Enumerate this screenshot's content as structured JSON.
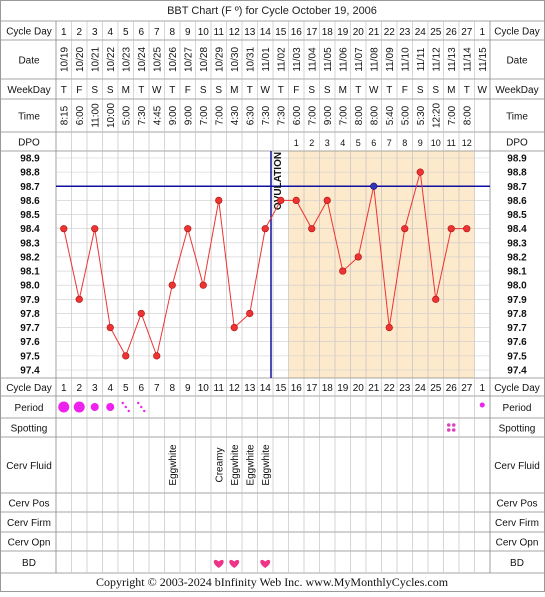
{
  "title": "BBT Chart (F º) for Cycle October 19, 2006",
  "row_labels": {
    "cycle_day": "Cycle Day",
    "date": "Date",
    "weekday": "WeekDay",
    "time": "Time",
    "dpo": "DPO",
    "period": "Period",
    "spotting": "Spotting",
    "cerv_fluid": "Cerv Fluid",
    "cerv_pos": "Cerv Pos",
    "cerv_firm": "Cerv Firm",
    "cerv_opn": "Cerv Opn",
    "bd": "BD"
  },
  "cycle_days": [
    "1",
    "2",
    "3",
    "4",
    "5",
    "6",
    "7",
    "8",
    "9",
    "10",
    "11",
    "12",
    "13",
    "14",
    "15",
    "16",
    "17",
    "18",
    "19",
    "20",
    "21",
    "22",
    "23",
    "24",
    "25",
    "26",
    "27",
    "1"
  ],
  "dates": [
    "10/19",
    "10/20",
    "10/21",
    "10/22",
    "10/23",
    "10/24",
    "10/25",
    "10/26",
    "10/27",
    "10/28",
    "10/29",
    "10/30",
    "10/31",
    "11/01",
    "11/02",
    "11/03",
    "11/04",
    "11/05",
    "11/06",
    "11/07",
    "11/08",
    "11/09",
    "11/10",
    "11/11",
    "11/12",
    "11/13",
    "11/14",
    "11/15"
  ],
  "weekdays": [
    "T",
    "F",
    "S",
    "S",
    "M",
    "T",
    "W",
    "T",
    "F",
    "S",
    "S",
    "M",
    "T",
    "W",
    "T",
    "F",
    "S",
    "S",
    "M",
    "T",
    "W",
    "T",
    "F",
    "S",
    "S",
    "M",
    "T",
    "W"
  ],
  "times": [
    "8:15",
    "6:00",
    "11:00",
    "10:00",
    "5:00",
    "7:30",
    "4:45",
    "9:00",
    "9:00",
    "7:00",
    "7:00",
    "4:30",
    "6:30",
    "7:30",
    "7:30",
    "6:00",
    "7:00",
    "9:00",
    "7:00",
    "8:00",
    "8:00",
    "5:40",
    "5:00",
    "5:30",
    "12:20",
    "7:00",
    "8:00",
    ""
  ],
  "dpo": [
    "",
    "",
    "",
    "",
    "",
    "",
    "",
    "",
    "",
    "",
    "",
    "",
    "",
    "",
    "",
    "1",
    "2",
    "3",
    "4",
    "5",
    "6",
    "7",
    "8",
    "9",
    "10",
    "11",
    "12",
    ""
  ],
  "cerv_fluid": [
    "",
    "",
    "",
    "",
    "",
    "",
    "",
    "Eggwhite",
    "",
    "",
    "Creamy",
    "Eggwhite",
    "Eggwhite",
    "Eggwhite",
    "",
    "",
    "",
    "",
    "",
    "",
    "",
    "",
    "",
    "",
    "",
    "",
    "",
    ""
  ],
  "coverline_label": "OVULATION",
  "copyright": "Copyright © 2003-2024 bInfinity Web Inc.     www.MyMonthlyCycles.com",
  "colors": {
    "line": "#ee3333",
    "coverline": "#1010a0",
    "luteal_bg": "#fde9cc",
    "period": "#ee22ee",
    "bd": "#ee3388",
    "spotting": "#dd44bb"
  },
  "chart_data": {
    "type": "line",
    "title": "BBT Chart (F º) for Cycle October 19, 2006",
    "xlabel": "",
    "ylabel": "",
    "ylim": [
      97.4,
      98.9
    ],
    "yticks": [
      "98.9",
      "98.8",
      "98.7",
      "98.6",
      "98.5",
      "98.4",
      "98.3",
      "98.2",
      "98.1",
      "98.0",
      "97.9",
      "97.8",
      "97.7",
      "97.6",
      "97.5",
      "97.4"
    ],
    "x": [
      1,
      2,
      3,
      4,
      5,
      6,
      7,
      8,
      9,
      10,
      11,
      12,
      13,
      14,
      15,
      16,
      17,
      18,
      19,
      20,
      21,
      22,
      23,
      24,
      25,
      26,
      27
    ],
    "temperatures": [
      98.4,
      97.9,
      98.4,
      97.7,
      97.5,
      97.8,
      97.5,
      98.0,
      98.4,
      98.0,
      98.6,
      97.7,
      97.8,
      98.4,
      98.6,
      98.6,
      98.4,
      98.6,
      98.1,
      98.2,
      98.7,
      97.7,
      98.4,
      98.8,
      97.9,
      98.4,
      98.4
    ],
    "coverline": 98.7,
    "ovulation_day": 15,
    "highlighted_point_day": 21,
    "period": [
      3,
      3,
      2,
      2,
      1,
      1,
      0,
      0,
      0,
      0,
      0,
      0,
      0,
      0,
      0,
      0,
      0,
      0,
      0,
      0,
      0,
      0,
      0,
      0,
      0,
      0,
      0,
      1
    ],
    "spotting_days": [
      26
    ],
    "bd_days": [
      11,
      12,
      14
    ],
    "grid": true
  }
}
